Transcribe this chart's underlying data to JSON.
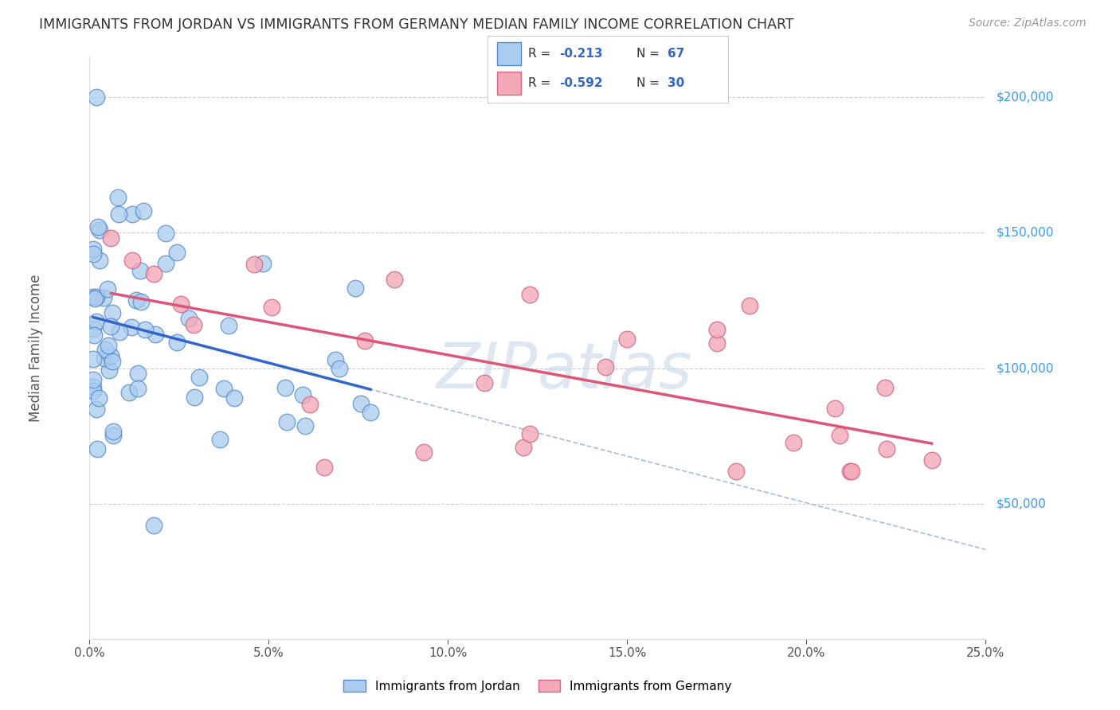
{
  "title": "IMMIGRANTS FROM JORDAN VS IMMIGRANTS FROM GERMANY MEDIAN FAMILY INCOME CORRELATION CHART",
  "source": "Source: ZipAtlas.com",
  "ylabel": "Median Family Income",
  "xmin": 0.0,
  "xmax": 0.25,
  "ymin": 0,
  "ymax": 215000,
  "xticks": [
    0.0,
    0.05,
    0.1,
    0.15,
    0.2,
    0.25
  ],
  "xtick_labels": [
    "0.0%",
    "5.0%",
    "10.0%",
    "15.0%",
    "20.0%",
    "25.0%"
  ],
  "ytick_vals": [
    50000,
    100000,
    150000,
    200000
  ],
  "ytick_labels": [
    "$50,000",
    "$100,000",
    "$150,000",
    "$200,000"
  ],
  "jordan_color": "#aaccee",
  "jordan_edge": "#5588cc",
  "germany_color": "#f4a8b8",
  "germany_edge": "#cc6688",
  "jordan_line_color": "#3366cc",
  "germany_line_color": "#dd5577",
  "dash_line_color": "#aabbdd",
  "watermark_color": "#d0dce8",
  "background_color": "#ffffff",
  "grid_color": "#cccccc",
  "title_color": "#333333",
  "axis_label_color": "#555555",
  "tick_color": "#3399ff",
  "source_color": "#999999",
  "legend_text_color": "#333333",
  "legend_r_color": "#3366cc",
  "jordan_N": 67,
  "germany_N": 30,
  "jordan_R": -0.213,
  "germany_R": -0.592
}
